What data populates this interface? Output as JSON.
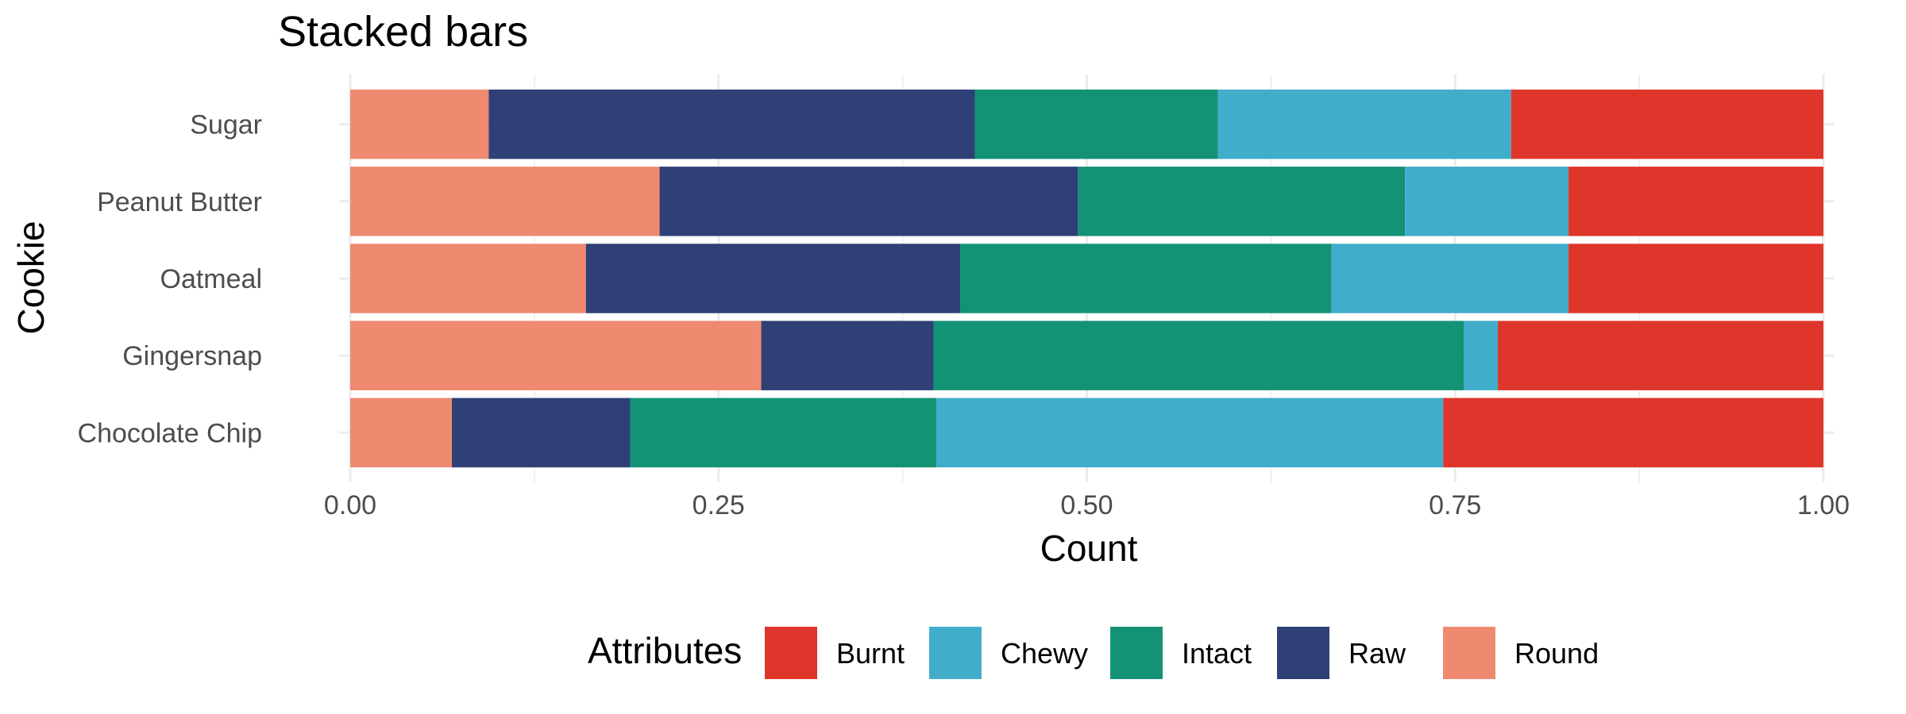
{
  "chart_data": {
    "type": "bar",
    "orientation": "horizontal",
    "stacked": true,
    "title": "Stacked bars",
    "xlabel": "Count",
    "ylabel": "Cookie",
    "xlim": [
      0,
      1
    ],
    "x_ticks": [
      "0.00",
      "0.25",
      "0.50",
      "0.75",
      "1.00"
    ],
    "x_tick_values": [
      0,
      0.25,
      0.5,
      0.75,
      1.0
    ],
    "grid": true,
    "legend_position": "bottom",
    "legend_title": "Attributes",
    "categories": [
      "Chocolate Chip",
      "Gingersnap",
      "Oatmeal",
      "Peanut Butter",
      "Sugar"
    ],
    "series": [
      {
        "name": "Round",
        "color": "#EF8A70",
        "values": [
          0.069,
          0.279,
          0.16,
          0.21,
          0.094
        ]
      },
      {
        "name": "Raw",
        "color": "#2F4077",
        "values": [
          0.121,
          0.117,
          0.254,
          0.284,
          0.33
        ]
      },
      {
        "name": "Intact",
        "color": "#149276",
        "values": [
          0.208,
          0.36,
          0.252,
          0.222,
          0.165
        ]
      },
      {
        "name": "Chewy",
        "color": "#42ADCB",
        "values": [
          0.344,
          0.023,
          0.161,
          0.111,
          0.199
        ]
      },
      {
        "name": "Burnt",
        "color": "#DF362C",
        "values": [
          0.258,
          0.221,
          0.173,
          0.173,
          0.212
        ]
      }
    ],
    "legend_order": [
      "Burnt",
      "Chewy",
      "Intact",
      "Raw",
      "Round"
    ]
  }
}
